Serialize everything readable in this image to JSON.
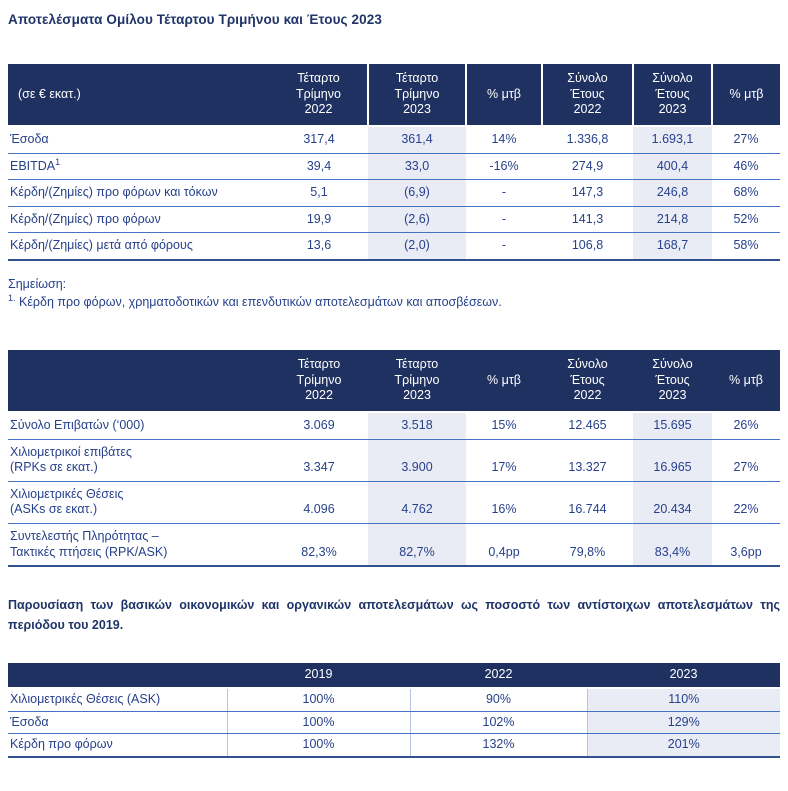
{
  "page": {
    "title": "Αποτελέσματα Ομίλου Τέταρτου Τριμήνου και Έτους 2023",
    "note_heading": "Σημείωση:",
    "note_sup": "1.",
    "note_text": " Κέρδη προ φόρων, χρηματοδοτικών και επενδυτικών αποτελεσμάτων και αποσβέσεων.",
    "paragraph": "Παρουσίαση των βασικών οικονομικών και οργανικών αποτελεσμάτων ως ποσοστό των αντίστοιχων αποτελεσμάτων της περιόδου του 2019."
  },
  "colors": {
    "header_bg": "#1F3160",
    "text_navy": "#27418B",
    "column_shade": "#E9EBF5",
    "row_line": "#4472C4"
  },
  "financial_table": {
    "header": [
      "(σε € εκατ.)",
      "Τέταρτο\nΤρίμηνο\n2022",
      "Τέταρτο\nΤρίμηνο\n2023",
      "% μτβ",
      "Σύνολο\nΈτους\n2022",
      "Σύνολο\nΈτους\n2023",
      "% μτβ"
    ],
    "rows": [
      {
        "label": "Έσοδα",
        "sup": "",
        "values": [
          "317,4",
          "361,4",
          "14%",
          "1.336,8",
          "1.693,1",
          "27%"
        ]
      },
      {
        "label": "EBITDA",
        "sup": "1",
        "values": [
          "39,4",
          "33,0",
          "-16%",
          "274,9",
          "400,4",
          "46%"
        ]
      },
      {
        "label": "Κέρδη/(Ζημίες) προ φόρων και τόκων",
        "sup": "",
        "values": [
          "5,1",
          "(6,9)",
          "-",
          "147,3",
          "246,8",
          "68%"
        ]
      },
      {
        "label": "Κέρδη/(Ζημίες) προ φόρων",
        "sup": "",
        "values": [
          "19,9",
          "(2,6)",
          "-",
          "141,3",
          "214,8",
          "52%"
        ]
      },
      {
        "label": "Κέρδη/(Ζημίες) μετά από φόρους",
        "sup": "",
        "values": [
          "13,6",
          "(2,0)",
          "-",
          "106,8",
          "168,7",
          "58%"
        ]
      }
    ]
  },
  "traffic_table": {
    "header": [
      "",
      "Τέταρτο\nΤρίμηνο\n2022",
      "Τέταρτο\nΤρίμηνο\n2023",
      "% μτβ",
      "Σύνολο\nΈτους\n2022",
      "Σύνολο\nΈτους\n2023",
      "% μτβ"
    ],
    "rows": [
      {
        "label": "Σύνολο Επιβατών (‘000)",
        "sup": "",
        "values": [
          "3.069",
          "3.518",
          "15%",
          "12.465",
          "15.695",
          "26%"
        ]
      },
      {
        "label": "Χιλιομετρικοί επιβάτες\n(RPKs σε εκατ.)",
        "sup": "",
        "values": [
          "3.347",
          "3.900",
          "17%",
          "13.327",
          "16.965",
          "27%"
        ]
      },
      {
        "label": "Χιλιομετρικές Θέσεις\n(ASKs σε εκατ.)",
        "sup": "",
        "values": [
          "4.096",
          "4.762",
          "16%",
          "16.744",
          "20.434",
          "22%"
        ]
      },
      {
        "label": "Συντελεστής Πληρότητας –\nΤακτικές πτήσεις (RPK/ASK)",
        "sup": "",
        "values": [
          "82,3%",
          "82,7%",
          "0,4pp",
          "79,8%",
          "83,4%",
          "3,6pp"
        ]
      }
    ]
  },
  "comparison_table": {
    "header": [
      "",
      "2019",
      "2022",
      "2023"
    ],
    "rows": [
      {
        "label": "Χιλιομετρικές Θέσεις (ASK)",
        "sup": "",
        "values": [
          "100%",
          "90%",
          "110%"
        ]
      },
      {
        "label": "Έσοδα",
        "sup": "",
        "values": [
          "100%",
          "102%",
          "129%"
        ]
      },
      {
        "label": "Κέρδη προ φόρων",
        "sup": "",
        "values": [
          "100%",
          "132%",
          "201%"
        ]
      }
    ]
  }
}
